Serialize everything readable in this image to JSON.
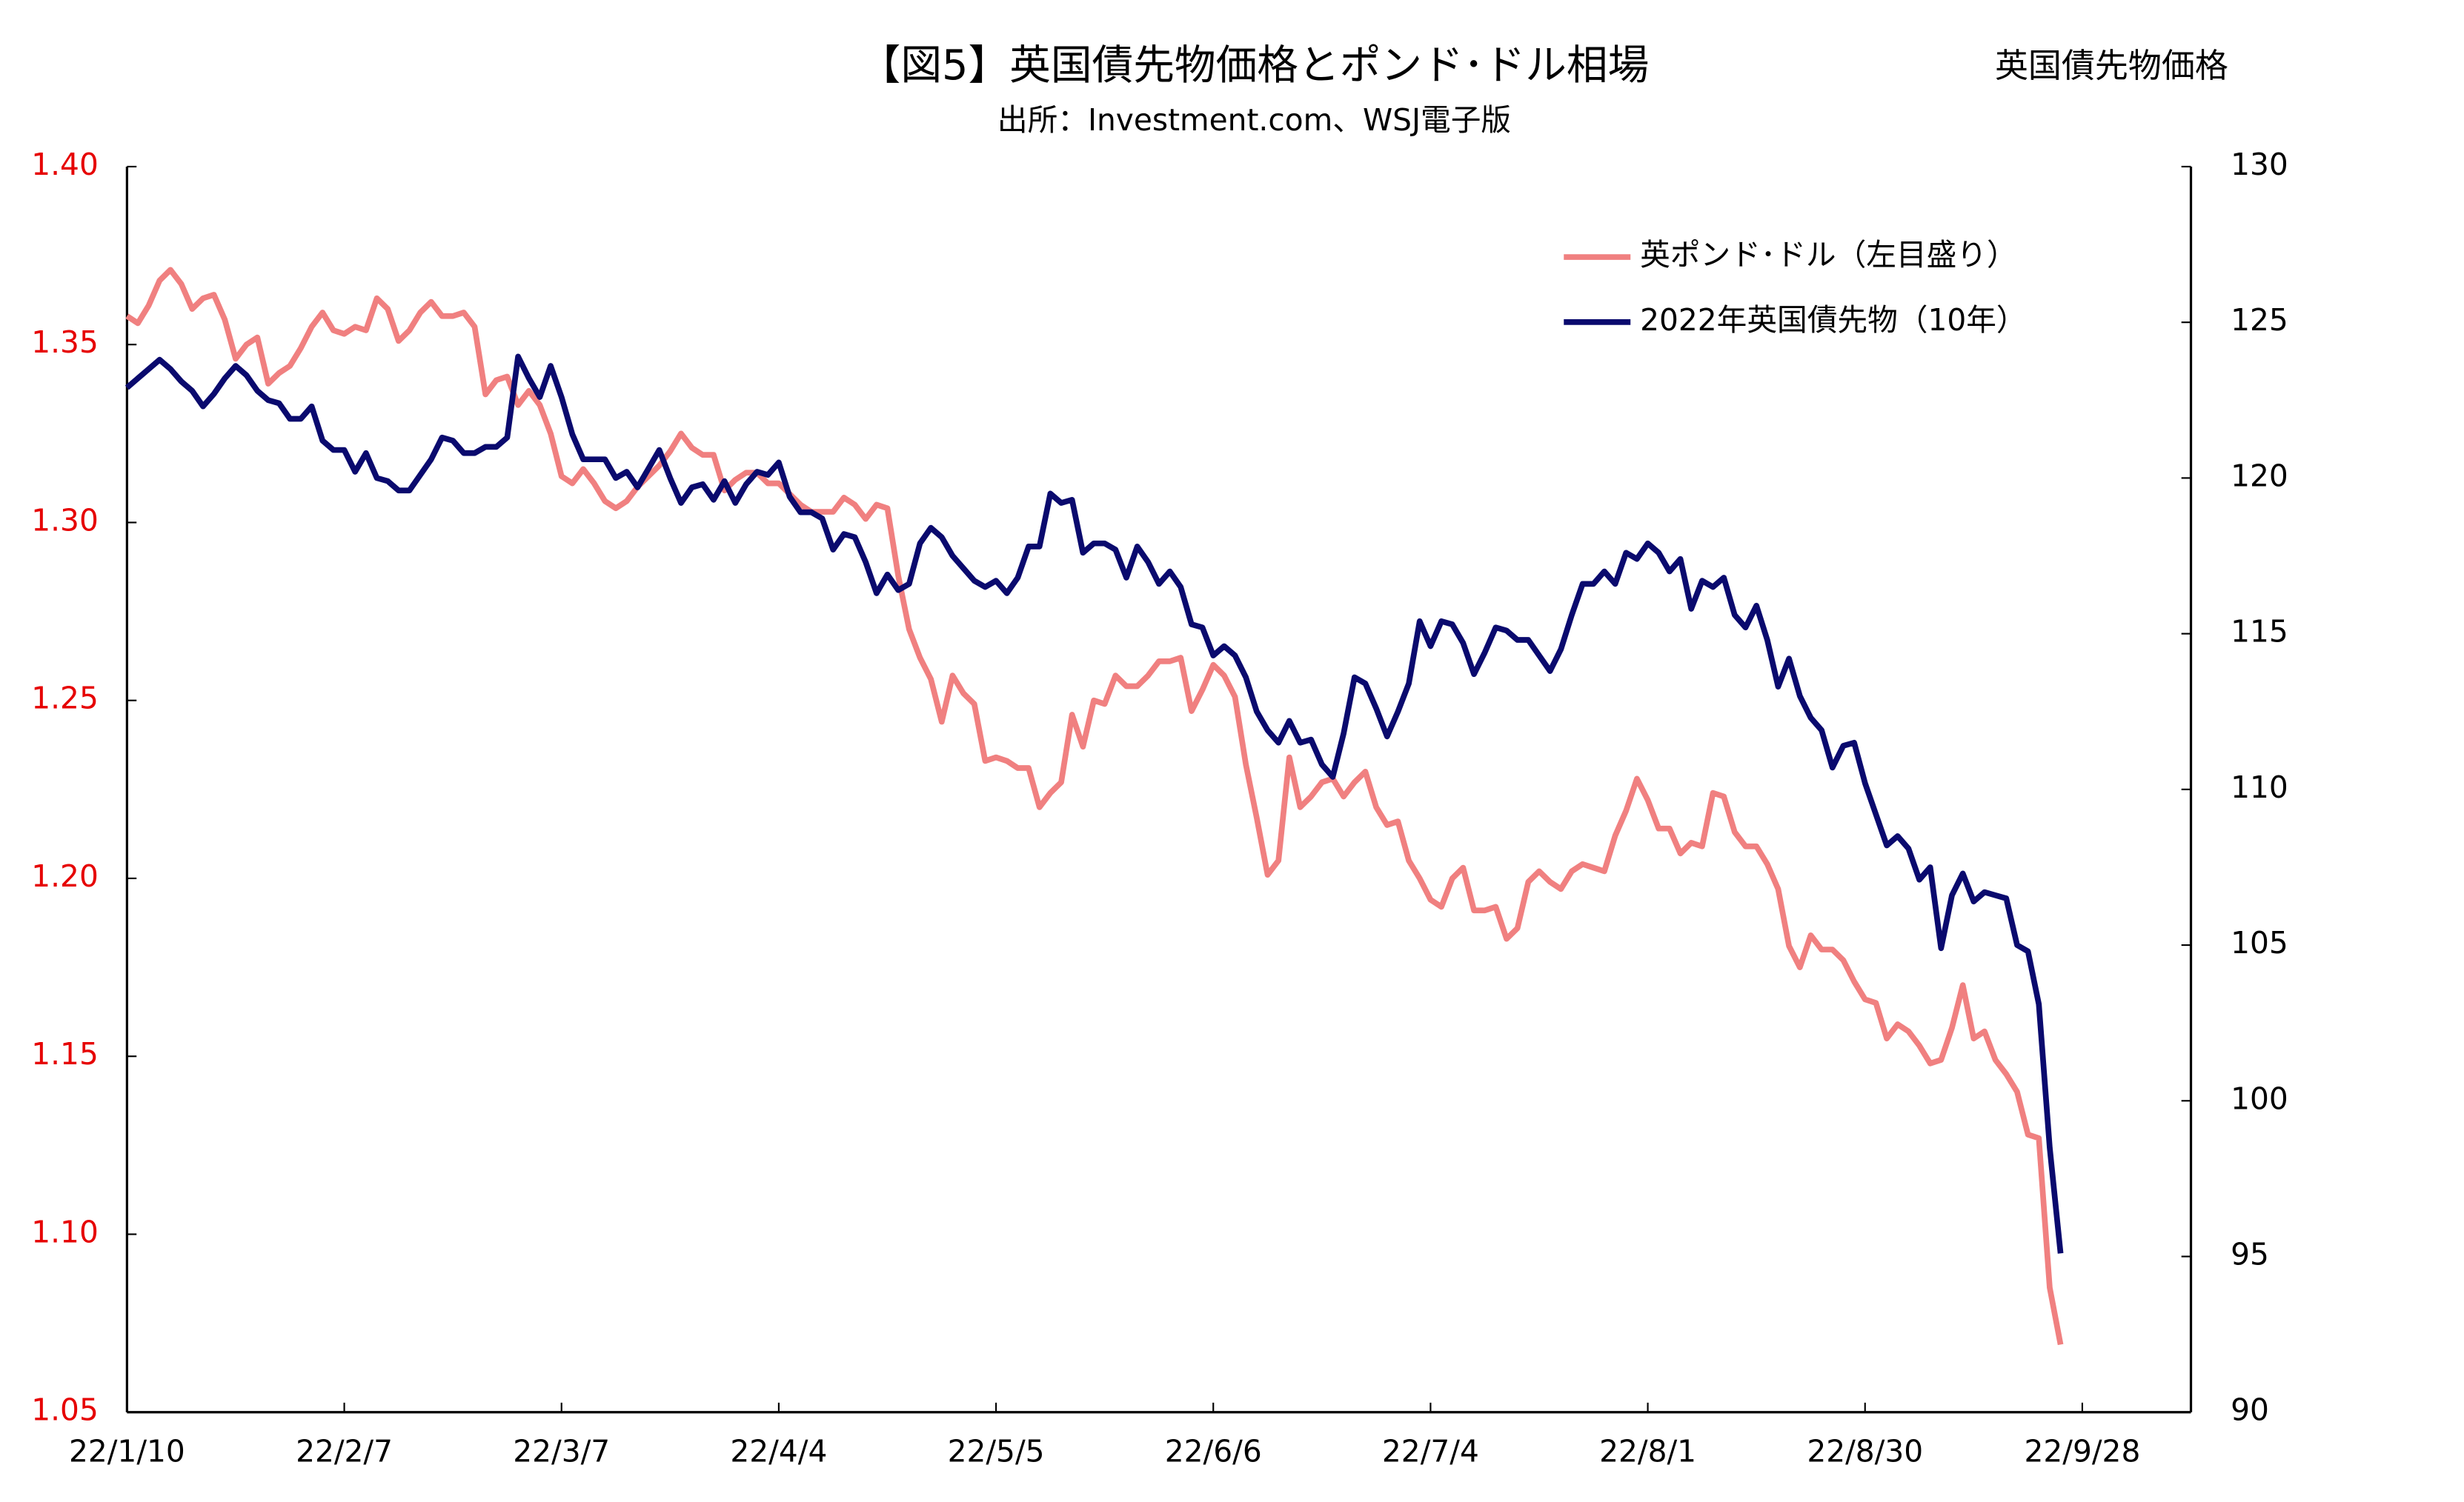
{
  "chart_data": {
    "type": "line",
    "title": "【図5】英国債先物価格とポンド･ドル相場",
    "subtitle": "出所：Investment.com、WSJ電子版",
    "y2_label": "英国債先物価格",
    "legend": "upper right",
    "grid": false,
    "ytick_color": "#e60000",
    "categories": [
      "22/1/10",
      null,
      null,
      null,
      null,
      null,
      null,
      null,
      null,
      null,
      null,
      null,
      null,
      null,
      null,
      null,
      null,
      null,
      null,
      null,
      "22/2/7",
      null,
      null,
      null,
      null,
      null,
      null,
      null,
      null,
      null,
      null,
      null,
      null,
      null,
      null,
      null,
      null,
      null,
      null,
      null,
      "22/3/7",
      null,
      null,
      null,
      null,
      null,
      null,
      null,
      null,
      null,
      null,
      null,
      null,
      null,
      null,
      null,
      null,
      null,
      null,
      null,
      "22/4/4",
      null,
      null,
      null,
      null,
      null,
      null,
      null,
      null,
      null,
      null,
      null,
      null,
      null,
      null,
      null,
      null,
      null,
      null,
      null,
      "22/5/5",
      null,
      null,
      null,
      null,
      null,
      null,
      null,
      null,
      null,
      null,
      null,
      null,
      null,
      null,
      null,
      null,
      null,
      null,
      null,
      "22/6/6",
      null,
      null,
      null,
      null,
      null,
      null,
      null,
      null,
      null,
      null,
      null,
      null,
      null,
      null,
      null,
      null,
      null,
      null,
      null,
      "22/7/4",
      null,
      null,
      null,
      null,
      null,
      null,
      null,
      null,
      null,
      null,
      null,
      null,
      null,
      null,
      null,
      null,
      null,
      null,
      null,
      "22/8/1",
      null,
      null,
      null,
      null,
      null,
      null,
      null,
      null,
      null,
      null,
      null,
      null,
      null,
      null,
      null,
      null,
      null,
      null,
      null,
      "22/8/30",
      null,
      null,
      null,
      null,
      null,
      null,
      null,
      null,
      null,
      null,
      null,
      null,
      null,
      null,
      null,
      null,
      null,
      null,
      null,
      "22/9/28",
      null,
      null,
      null,
      null,
      null,
      null,
      null,
      null,
      null
    ],
    "series": [
      {
        "name": "英ポンド･ドル（左目盛り）",
        "color": "#f08080",
        "values": [
          1.358,
          1.356,
          1.361,
          1.368,
          1.371,
          1.367,
          1.36,
          1.363,
          1.364,
          1.357,
          1.346,
          1.35,
          1.352,
          1.339,
          1.342,
          1.344,
          1.349,
          1.355,
          1.359,
          1.354,
          1.353,
          1.355,
          1.354,
          1.363,
          1.36,
          1.351,
          1.354,
          1.359,
          1.362,
          1.358,
          1.358,
          1.359,
          1.355,
          1.336,
          1.34,
          1.341,
          1.333,
          1.337,
          1.333,
          1.325,
          1.313,
          1.311,
          1.315,
          1.311,
          1.306,
          1.304,
          1.306,
          1.31,
          1.313,
          1.316,
          1.32,
          1.325,
          1.321,
          1.319,
          1.319,
          1.309,
          1.312,
          1.314,
          1.314,
          1.311,
          1.311,
          1.308,
          1.305,
          1.303,
          1.303,
          1.303,
          1.307,
          1.305,
          1.301,
          1.305,
          1.304,
          1.285,
          1.27,
          1.262,
          1.256,
          1.244,
          1.257,
          1.252,
          1.249,
          1.233,
          1.234,
          1.233,
          1.231,
          1.231,
          1.22,
          1.224,
          1.227,
          1.246,
          1.237,
          1.25,
          1.249,
          1.257,
          1.254,
          1.254,
          1.257,
          1.261,
          1.261,
          1.262,
          1.247,
          1.253,
          1.26,
          1.257,
          1.251,
          1.232,
          1.217,
          1.201,
          1.205,
          1.234,
          1.22,
          1.223,
          1.227,
          1.228,
          1.223,
          1.227,
          1.23,
          1.22,
          1.215,
          1.216,
          1.205,
          1.2,
          1.194,
          1.192,
          1.2,
          1.203,
          1.191,
          1.191,
          1.192,
          1.183,
          1.186,
          1.199,
          1.202,
          1.199,
          1.197,
          1.202,
          1.204,
          1.203,
          1.202,
          1.212,
          1.219,
          1.228,
          1.222,
          1.214,
          1.214,
          1.207,
          1.21,
          1.209,
          1.224,
          1.223,
          1.213,
          1.209,
          1.209,
          1.204,
          1.197,
          1.181,
          1.175,
          1.184,
          1.18,
          1.18,
          1.177,
          1.171,
          1.166,
          1.165,
          1.155,
          1.159,
          1.157,
          1.153,
          1.148,
          1.149,
          1.158,
          1.17,
          1.155,
          1.157,
          1.149,
          1.145,
          1.14,
          1.128,
          1.127,
          1.085,
          1.069,
          null,
          null,
          null,
          null,
          null,
          null,
          null,
          null,
          null,
          null,
          null
        ]
      },
      {
        "name": "2022年英国債先物（10年）",
        "color": "#0a0a6e",
        "axis": "y2",
        "values": [
          122.9,
          123.2,
          123.5,
          123.8,
          123.5,
          123.1,
          122.8,
          122.3,
          122.7,
          123.2,
          123.6,
          123.3,
          122.8,
          122.5,
          122.4,
          121.9,
          121.9,
          122.3,
          121.2,
          120.9,
          120.9,
          120.2,
          120.8,
          120.0,
          119.9,
          119.6,
          119.6,
          120.1,
          120.6,
          121.3,
          121.2,
          120.8,
          120.8,
          121.0,
          121.0,
          121.3,
          123.9,
          123.2,
          122.6,
          123.6,
          122.6,
          121.4,
          120.6,
          120.6,
          120.6,
          120.0,
          120.2,
          119.7,
          120.3,
          120.9,
          120.0,
          119.2,
          119.7,
          119.8,
          119.3,
          119.9,
          119.2,
          119.8,
          120.2,
          120.1,
          120.5,
          119.4,
          118.9,
          118.9,
          118.7,
          117.7,
          118.2,
          118.1,
          117.3,
          116.3,
          116.9,
          116.4,
          116.6,
          117.9,
          118.4,
          118.1,
          117.5,
          117.1,
          116.7,
          116.5,
          116.7,
          116.3,
          116.8,
          117.8,
          117.8,
          119.5,
          119.2,
          119.3,
          117.6,
          117.9,
          117.9,
          117.7,
          116.8,
          117.8,
          117.3,
          116.6,
          117.0,
          116.5,
          115.3,
          115.2,
          114.3,
          114.6,
          114.3,
          113.6,
          112.5,
          111.9,
          111.5,
          112.2,
          111.5,
          111.6,
          110.8,
          110.4,
          111.8,
          113.6,
          113.4,
          112.6,
          111.7,
          112.5,
          113.4,
          115.4,
          114.6,
          115.4,
          115.3,
          114.7,
          113.7,
          114.4,
          115.2,
          115.1,
          114.8,
          114.8,
          114.3,
          113.8,
          114.5,
          115.6,
          116.6,
          116.6,
          117.0,
          116.6,
          117.6,
          117.4,
          117.9,
          117.6,
          117.0,
          117.4,
          115.8,
          116.7,
          116.5,
          116.8,
          115.6,
          115.2,
          115.9,
          114.8,
          113.3,
          114.2,
          113.0,
          112.3,
          111.9,
          110.7,
          111.4,
          111.5,
          110.2,
          109.2,
          108.2,
          108.5,
          108.1,
          107.1,
          107.5,
          104.9,
          106.6,
          107.3,
          106.4,
          106.7,
          106.6,
          106.5,
          105.0,
          104.8,
          103.1,
          98.5,
          95.1,
          null,
          null,
          null,
          null,
          null,
          null,
          null,
          null,
          null,
          null,
          null
        ]
      }
    ],
    "ylim": [
      1.05,
      1.4
    ],
    "yticks": [
      {
        "value": 1.05,
        "label": "1.05"
      },
      {
        "value": 1.1,
        "label": "1.10"
      },
      1.15,
      {
        "value": 1.2,
        "label": "1.20"
      },
      1.25,
      {
        "value": 1.3,
        "label": "1.30"
      },
      1.35,
      {
        "value": 1.4,
        "label": "1.40"
      }
    ],
    "y2lim": [
      90,
      130
    ],
    "y2ticks": [
      90,
      95,
      100,
      105,
      110,
      115,
      120,
      125,
      130
    ]
  }
}
